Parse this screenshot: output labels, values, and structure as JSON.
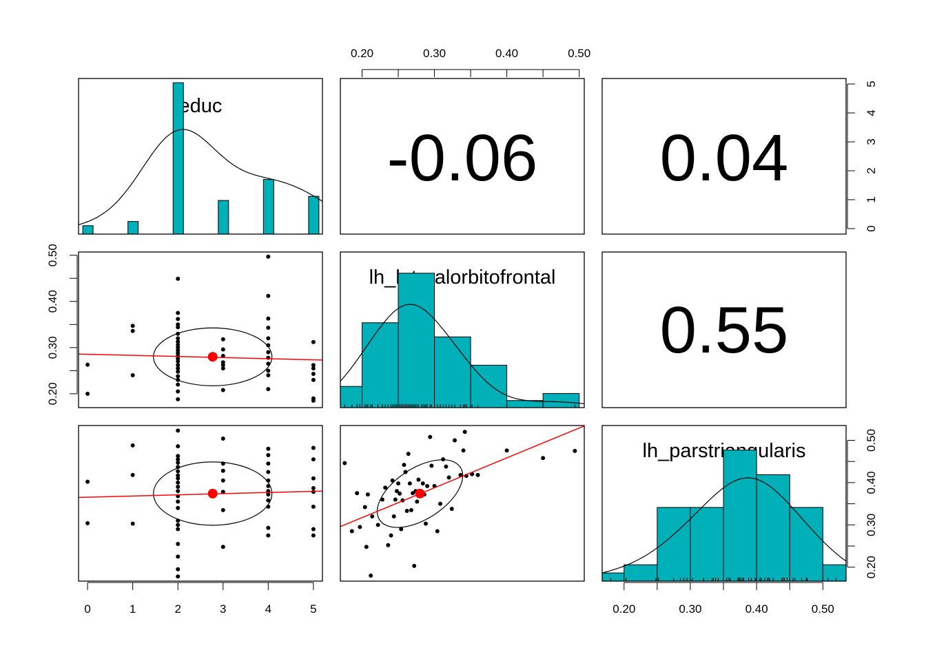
{
  "chart_data": {
    "type": "scatter-matrix",
    "variables": [
      "educ",
      "lh_lateralorbitofrontal",
      "lh_parstriangularis"
    ],
    "correlations": [
      {
        "row": 0,
        "col": 1,
        "text": "-0.06"
      },
      {
        "row": 0,
        "col": 2,
        "text": "0.04"
      },
      {
        "row": 1,
        "col": 2,
        "text": "0.55"
      }
    ],
    "axes": {
      "educ": {
        "range": [
          -0.2,
          5.2
        ],
        "ticks": [
          0,
          1,
          2,
          3,
          4,
          5
        ],
        "labels": [
          "0",
          "1",
          "2",
          "3",
          "4",
          "5"
        ]
      },
      "lh_lateralorbitofrontal": {
        "range": [
          0.17,
          0.507
        ],
        "ticks": [
          0.2,
          0.25,
          0.3,
          0.35,
          0.4,
          0.45,
          0.5
        ],
        "labels": [
          "0.20",
          "",
          "0.30",
          "",
          "0.40",
          "",
          "0.50"
        ]
      },
      "lh_parstriangularis": {
        "range": [
          0.167,
          0.535
        ],
        "ticks": [
          0.2,
          0.25,
          0.3,
          0.35,
          0.4,
          0.45,
          0.5
        ],
        "labels": [
          "0.20",
          "",
          "0.30",
          "",
          "0.40",
          "",
          "0.50"
        ]
      }
    },
    "educ_hist": {
      "values": [
        0,
        1,
        2,
        3,
        4,
        5
      ],
      "counts": [
        2,
        3,
        36,
        8,
        13,
        9
      ],
      "ylim": [
        0,
        37
      ]
    },
    "lof_hist": {
      "breaks": [
        0.15,
        0.2,
        0.25,
        0.3,
        0.35,
        0.4,
        0.45,
        0.5
      ],
      "counts": [
        3,
        12,
        19,
        10,
        6,
        1,
        2
      ],
      "ymax": 22
    },
    "pt_hist": {
      "breaks": [
        0.15,
        0.2,
        0.25,
        0.3,
        0.35,
        0.4,
        0.45,
        0.5,
        0.55
      ],
      "counts": [
        1,
        2,
        9,
        9,
        16,
        13,
        9,
        2
      ],
      "ymax": 19
    },
    "educ_lof": {
      "points": [
        [
          0,
          0.263
        ],
        [
          0,
          0.2
        ],
        [
          1,
          0.347
        ],
        [
          1,
          0.336
        ],
        [
          1,
          0.24
        ],
        [
          2,
          0.449
        ],
        [
          2,
          0.375
        ],
        [
          2,
          0.362
        ],
        [
          2,
          0.35
        ],
        [
          2,
          0.344
        ],
        [
          2,
          0.33
        ],
        [
          2,
          0.32
        ],
        [
          2,
          0.313
        ],
        [
          2,
          0.306
        ],
        [
          2,
          0.3
        ],
        [
          2,
          0.294
        ],
        [
          2,
          0.288
        ],
        [
          2,
          0.282
        ],
        [
          2,
          0.276
        ],
        [
          2,
          0.27
        ],
        [
          2,
          0.262
        ],
        [
          2,
          0.255
        ],
        [
          2,
          0.248
        ],
        [
          2,
          0.238
        ],
        [
          2,
          0.23
        ],
        [
          2,
          0.22
        ],
        [
          2,
          0.205
        ],
        [
          2,
          0.188
        ],
        [
          3,
          0.318
        ],
        [
          3,
          0.296
        ],
        [
          3,
          0.282
        ],
        [
          3,
          0.268
        ],
        [
          3,
          0.262
        ],
        [
          3,
          0.255
        ],
        [
          3,
          0.208
        ],
        [
          4,
          0.497
        ],
        [
          4,
          0.412
        ],
        [
          4,
          0.363
        ],
        [
          4,
          0.343
        ],
        [
          4,
          0.32
        ],
        [
          4,
          0.305
        ],
        [
          4,
          0.29
        ],
        [
          4,
          0.278
        ],
        [
          4,
          0.265
        ],
        [
          4,
          0.25
        ],
        [
          4,
          0.24
        ],
        [
          4,
          0.21
        ],
        [
          5,
          0.312
        ],
        [
          5,
          0.262
        ],
        [
          5,
          0.255
        ],
        [
          5,
          0.243
        ],
        [
          5,
          0.23
        ],
        [
          5,
          0.19
        ],
        [
          5,
          0.185
        ]
      ],
      "mean": [
        2.77,
        0.28
      ],
      "fit": [
        [
          -0.2,
          0.286
        ],
        [
          5.2,
          0.273
        ]
      ]
    },
    "educ_pt": {
      "points": [
        [
          0,
          0.402
        ],
        [
          0,
          0.304
        ],
        [
          1,
          0.488
        ],
        [
          1,
          0.418
        ],
        [
          1,
          0.303
        ],
        [
          2,
          0.523
        ],
        [
          2,
          0.486
        ],
        [
          2,
          0.463
        ],
        [
          2,
          0.455
        ],
        [
          2,
          0.447
        ],
        [
          2,
          0.437
        ],
        [
          2,
          0.427
        ],
        [
          2,
          0.417
        ],
        [
          2,
          0.41
        ],
        [
          2,
          0.4
        ],
        [
          2,
          0.39
        ],
        [
          2,
          0.38
        ],
        [
          2,
          0.368
        ],
        [
          2,
          0.355
        ],
        [
          2,
          0.34
        ],
        [
          2,
          0.31
        ],
        [
          2,
          0.3
        ],
        [
          2,
          0.29
        ],
        [
          2,
          0.255
        ],
        [
          2,
          0.225
        ],
        [
          2,
          0.195
        ],
        [
          2,
          0.178
        ],
        [
          3,
          0.504
        ],
        [
          3,
          0.445
        ],
        [
          3,
          0.428
        ],
        [
          3,
          0.405
        ],
        [
          3,
          0.378
        ],
        [
          3,
          0.335
        ],
        [
          3,
          0.248
        ],
        [
          4,
          0.48
        ],
        [
          4,
          0.465
        ],
        [
          4,
          0.445
        ],
        [
          4,
          0.425
        ],
        [
          4,
          0.405
        ],
        [
          4,
          0.392
        ],
        [
          4,
          0.38
        ],
        [
          4,
          0.372
        ],
        [
          4,
          0.358
        ],
        [
          4,
          0.343
        ],
        [
          4,
          0.293
        ],
        [
          4,
          0.275
        ],
        [
          5,
          0.482
        ],
        [
          5,
          0.455
        ],
        [
          5,
          0.41
        ],
        [
          5,
          0.387
        ],
        [
          5,
          0.378
        ],
        [
          5,
          0.343
        ],
        [
          5,
          0.29
        ],
        [
          5,
          0.275
        ]
      ],
      "mean": [
        2.77,
        0.374
      ],
      "fit": [
        [
          -0.2,
          0.365
        ],
        [
          5.2,
          0.38
        ]
      ]
    },
    "lof_pt": {
      "points": [
        [
          0.176,
          0.446
        ],
        [
          0.186,
          0.285
        ],
        [
          0.193,
          0.375
        ],
        [
          0.197,
          0.295
        ],
        [
          0.204,
          0.342
        ],
        [
          0.206,
          0.248
        ],
        [
          0.208,
          0.372
        ],
        [
          0.212,
          0.18
        ],
        [
          0.214,
          0.32
        ],
        [
          0.222,
          0.3
        ],
        [
          0.228,
          0.36
        ],
        [
          0.232,
          0.388
        ],
        [
          0.236,
          0.252
        ],
        [
          0.24,
          0.275
        ],
        [
          0.242,
          0.405
        ],
        [
          0.244,
          0.32
        ],
        [
          0.246,
          0.36
        ],
        [
          0.248,
          0.38
        ],
        [
          0.25,
          0.398
        ],
        [
          0.252,
          0.374
        ],
        [
          0.254,
          0.29
        ],
        [
          0.256,
          0.358
        ],
        [
          0.258,
          0.442
        ],
        [
          0.26,
          0.425
        ],
        [
          0.262,
          0.333
        ],
        [
          0.264,
          0.468
        ],
        [
          0.266,
          0.398
        ],
        [
          0.268,
          0.335
        ],
        [
          0.27,
          0.375
        ],
        [
          0.272,
          0.203
        ],
        [
          0.274,
          0.38
        ],
        [
          0.276,
          0.355
        ],
        [
          0.278,
          0.407
        ],
        [
          0.282,
          0.378
        ],
        [
          0.284,
          0.398
        ],
        [
          0.286,
          0.372
        ],
        [
          0.288,
          0.303
        ],
        [
          0.29,
          0.392
        ],
        [
          0.294,
          0.508
        ],
        [
          0.296,
          0.44
        ],
        [
          0.3,
          0.392
        ],
        [
          0.304,
          0.285
        ],
        [
          0.308,
          0.35
        ],
        [
          0.312,
          0.455
        ],
        [
          0.316,
          0.438
        ],
        [
          0.32,
          0.412
        ],
        [
          0.324,
          0.338
        ],
        [
          0.328,
          0.5
        ],
        [
          0.336,
          0.418
        ],
        [
          0.34,
          0.476
        ],
        [
          0.342,
          0.52
        ],
        [
          0.344,
          0.416
        ],
        [
          0.352,
          0.42
        ],
        [
          0.36,
          0.418
        ],
        [
          0.4,
          0.476
        ],
        [
          0.45,
          0.458
        ],
        [
          0.494,
          0.475
        ]
      ],
      "mean": [
        0.28,
        0.374
      ],
      "fit": [
        [
          0.17,
          0.296
        ],
        [
          0.507,
          0.534
        ]
      ]
    }
  }
}
